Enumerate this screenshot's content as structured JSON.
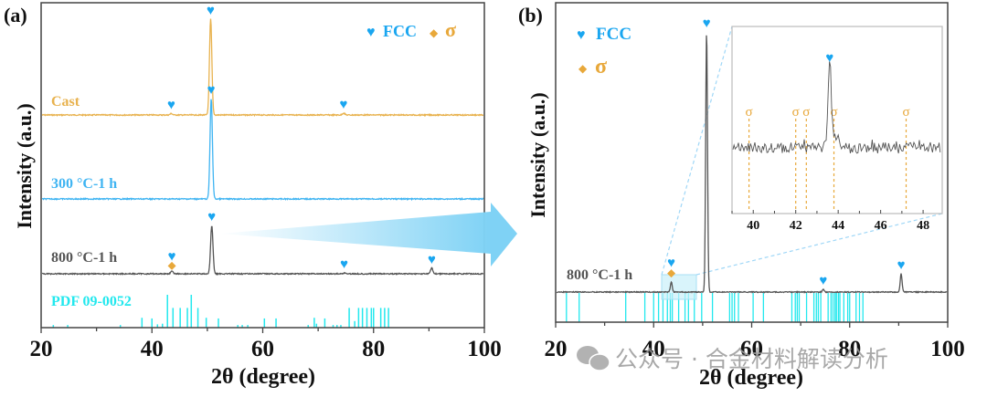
{
  "colors": {
    "fcc": "#1aa6f0",
    "sigma": "#e8a83a",
    "cast": "#e8b24e",
    "t300": "#3fb4f2",
    "t800": "#555555",
    "pdf": "#22e8ee",
    "axis": "#333333",
    "inset_frame": "#bbbbbb",
    "zoom_box": "#d8f4fb",
    "watermark": "#9a9a9a"
  },
  "watermark": {
    "text": "公众号 · 合金材料解读分析"
  },
  "chart_data": [
    {
      "panel": "(a)",
      "type": "line",
      "title": "",
      "xlabel": "2θ (degree)",
      "ylabel": "Intensity (a.u.)",
      "xlim": [
        20,
        100
      ],
      "xticks": [
        20,
        40,
        60,
        80,
        100
      ],
      "legend": {
        "placement": "top-right",
        "entries": [
          {
            "symbol": "♥",
            "label": "FCC"
          },
          {
            "symbol": "◆",
            "label": "σ"
          }
        ]
      },
      "series": [
        {
          "name": "Cast",
          "peaks": [
            {
              "x": 43.5,
              "height": 0.015,
              "markers": [
                "FCC"
              ]
            },
            {
              "x": 50.6,
              "height": 1.0,
              "markers": [
                "FCC"
              ]
            },
            {
              "x": 74.6,
              "height": 0.02,
              "markers": [
                "FCC"
              ]
            }
          ]
        },
        {
          "name": "300 °C-1 h",
          "peaks": [
            {
              "x": 50.7,
              "height": 1.0,
              "markers": [
                "FCC"
              ]
            }
          ]
        },
        {
          "name": "800 °C-1 h",
          "peaks": [
            {
              "x": 43.6,
              "height": 0.03,
              "markers": [
                "FCC",
                "σ"
              ]
            },
            {
              "x": 50.8,
              "height": 0.6,
              "markers": [
                "FCC"
              ]
            },
            {
              "x": 74.7,
              "height": 0.01,
              "markers": [
                "FCC"
              ]
            },
            {
              "x": 90.5,
              "height": 0.07,
              "markers": [
                "FCC"
              ]
            }
          ]
        }
      ],
      "reference": {
        "name": "PDF 09-0052",
        "lines": [
          {
            "x": 22.2,
            "i": 0.08
          },
          {
            "x": 24.8,
            "i": 0.08
          },
          {
            "x": 34.3,
            "i": 0.08
          },
          {
            "x": 38.2,
            "i": 0.3
          },
          {
            "x": 40.0,
            "i": 0.28
          },
          {
            "x": 41.0,
            "i": 0.1
          },
          {
            "x": 41.9,
            "i": 0.12
          },
          {
            "x": 42.8,
            "i": 1.0
          },
          {
            "x": 43.8,
            "i": 0.6
          },
          {
            "x": 45.1,
            "i": 0.6
          },
          {
            "x": 46.4,
            "i": 0.6
          },
          {
            "x": 47.1,
            "i": 1.0
          },
          {
            "x": 48.3,
            "i": 0.6
          },
          {
            "x": 49.8,
            "i": 0.3
          },
          {
            "x": 52.0,
            "i": 0.28
          },
          {
            "x": 55.5,
            "i": 0.08
          },
          {
            "x": 56.3,
            "i": 0.08
          },
          {
            "x": 57.3,
            "i": 0.08
          },
          {
            "x": 60.3,
            "i": 0.28
          },
          {
            "x": 62.4,
            "i": 0.28
          },
          {
            "x": 68.2,
            "i": 0.08
          },
          {
            "x": 69.3,
            "i": 0.3
          },
          {
            "x": 69.7,
            "i": 0.12
          },
          {
            "x": 71.2,
            "i": 0.28
          },
          {
            "x": 72.7,
            "i": 0.08
          },
          {
            "x": 73.4,
            "i": 0.08
          },
          {
            "x": 74.1,
            "i": 0.08
          },
          {
            "x": 75.6,
            "i": 0.6
          },
          {
            "x": 76.6,
            "i": 0.2
          },
          {
            "x": 77.3,
            "i": 0.6
          },
          {
            "x": 78.0,
            "i": 0.6
          },
          {
            "x": 78.8,
            "i": 0.6
          },
          {
            "x": 79.6,
            "i": 0.6
          },
          {
            "x": 80.0,
            "i": 0.6
          },
          {
            "x": 81.3,
            "i": 0.6
          },
          {
            "x": 82.0,
            "i": 0.6
          },
          {
            "x": 82.7,
            "i": 0.6
          }
        ]
      }
    },
    {
      "panel": "(b)",
      "type": "line",
      "title": "",
      "xlabel": "2θ (degree)",
      "ylabel": "Intensity (a.u.)",
      "xlim": [
        20,
        100
      ],
      "xticks": [
        20,
        40,
        60,
        80,
        100
      ],
      "legend": {
        "placement": "top-left",
        "entries": [
          {
            "symbol": "♥",
            "label": "FCC"
          },
          {
            "symbol": "◆",
            "label": "σ"
          }
        ]
      },
      "series": [
        {
          "name": "800 °C-1 h",
          "peaks": [
            {
              "x": 43.6,
              "height": 0.04,
              "markers": [
                "FCC",
                "σ"
              ]
            },
            {
              "x": 50.8,
              "height": 1.0,
              "markers": [
                "FCC"
              ]
            },
            {
              "x": 74.6,
              "height": 0.01,
              "markers": [
                "FCC"
              ]
            },
            {
              "x": 90.5,
              "height": 0.07,
              "markers": [
                "FCC"
              ]
            }
          ]
        }
      ],
      "zoom_region": {
        "xlim": [
          40.5,
          47.5
        ]
      },
      "reference_lines": [
        22.2,
        24.8,
        34.3,
        38.2,
        40.0,
        41.0,
        41.9,
        42.8,
        43.4,
        43.8,
        45.1,
        46.4,
        47.1,
        48.3,
        49.8,
        52.0,
        55.5,
        56.0,
        56.5,
        57.3,
        60.3,
        62.4,
        68.2,
        68.9,
        69.3,
        69.7,
        71.2,
        72.7,
        73.2,
        73.6,
        74.1,
        75.6,
        76.2,
        76.6,
        77.0,
        77.3,
        77.7,
        78.0,
        78.8,
        79.6,
        80.0,
        81.3,
        82.0,
        82.7
      ],
      "inset": {
        "xlim": [
          39.0,
          48.9
        ],
        "xticks": [
          40,
          42,
          44,
          46,
          48
        ],
        "fcc_peak": {
          "x": 43.6,
          "label": "FCC"
        },
        "sigma_lines": [
          39.8,
          42.0,
          42.5,
          43.8,
          47.2
        ],
        "sigma_label": "σ"
      }
    }
  ]
}
